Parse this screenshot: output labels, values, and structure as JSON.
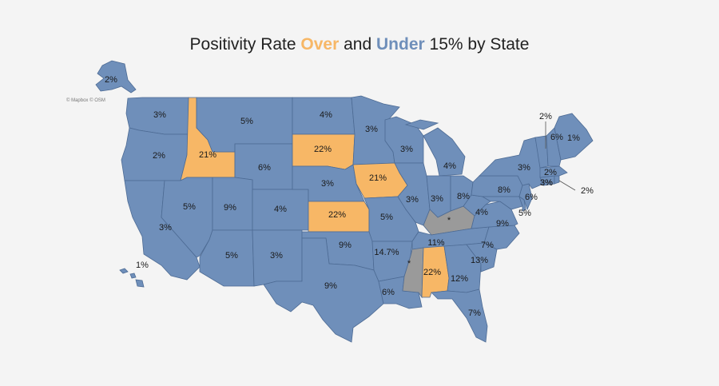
{
  "title": {
    "prefix": "Positivity Rate ",
    "over_word": "Over",
    "middle": " and ",
    "under_word": "Under",
    "suffix": " 15% by State"
  },
  "attribution": "© Mapbox © OSM",
  "colors": {
    "under": "#6f8fba",
    "over": "#f7b766",
    "no_data": "#9a9a9a",
    "background": "#f4f4f4"
  },
  "states": {
    "AK": {
      "rate": "2%",
      "category": "under"
    },
    "HI": {
      "rate": "1%",
      "category": "under"
    },
    "WA": {
      "rate": "3%",
      "category": "under"
    },
    "OR": {
      "rate": "2%",
      "category": "under"
    },
    "CA": {
      "rate": "3%",
      "category": "under"
    },
    "ID": {
      "rate": "21%",
      "category": "over"
    },
    "NV": {
      "rate": "5%",
      "category": "under"
    },
    "MT": {
      "rate": "5%",
      "category": "under"
    },
    "WY": {
      "rate": "6%",
      "category": "under"
    },
    "UT": {
      "rate": "9%",
      "category": "under"
    },
    "AZ": {
      "rate": "5%",
      "category": "under"
    },
    "CO": {
      "rate": "4%",
      "category": "under"
    },
    "NM": {
      "rate": "3%",
      "category": "under"
    },
    "ND": {
      "rate": "4%",
      "category": "under"
    },
    "SD": {
      "rate": "22%",
      "category": "over"
    },
    "NE": {
      "rate": "3%",
      "category": "under"
    },
    "KS": {
      "rate": "22%",
      "category": "over"
    },
    "OK": {
      "rate": "9%",
      "category": "under"
    },
    "TX": {
      "rate": "9%",
      "category": "under"
    },
    "MN": {
      "rate": "3%",
      "category": "under"
    },
    "IA": {
      "rate": "21%",
      "category": "over"
    },
    "MO": {
      "rate": "5%",
      "category": "under"
    },
    "AR": {
      "rate": "14.7%",
      "category": "under"
    },
    "LA": {
      "rate": "6%",
      "category": "under"
    },
    "WI": {
      "rate": "3%",
      "category": "under"
    },
    "IL": {
      "rate": "3%",
      "category": "under"
    },
    "MS": {
      "rate": "*",
      "category": "no_data"
    },
    "MI": {
      "rate": "4%",
      "category": "under"
    },
    "IN": {
      "rate": "3%",
      "category": "under"
    },
    "KY": {
      "rate": "*",
      "category": "no_data"
    },
    "TN": {
      "rate": "11%",
      "category": "under"
    },
    "AL": {
      "rate": "22%",
      "category": "over"
    },
    "OH": {
      "rate": "8%",
      "category": "under"
    },
    "WV": {
      "rate": "4%",
      "category": "under"
    },
    "VA": {
      "rate": "9%",
      "category": "under"
    },
    "NC": {
      "rate": "7%",
      "category": "under"
    },
    "SC": {
      "rate": "13%",
      "category": "under"
    },
    "GA": {
      "rate": "12%",
      "category": "under"
    },
    "FL": {
      "rate": "7%",
      "category": "under"
    },
    "PA": {
      "rate": "8%",
      "category": "under"
    },
    "NY": {
      "rate": "3%",
      "category": "under"
    },
    "NJ": {
      "rate": "6%",
      "category": "under"
    },
    "DE": {
      "rate": "5%",
      "category": "under"
    },
    "MD": {
      "rate": "3%",
      "category": "under"
    },
    "VT": {
      "rate": "2%",
      "category": "under"
    },
    "NH": {
      "rate": "6%",
      "category": "under"
    },
    "ME": {
      "rate": "1%",
      "category": "under"
    },
    "MA": {
      "rate": "2%",
      "category": "under"
    },
    "CT": {
      "rate": "3%",
      "category": "under"
    },
    "RI": {
      "rate": "2%",
      "category": "under"
    }
  }
}
